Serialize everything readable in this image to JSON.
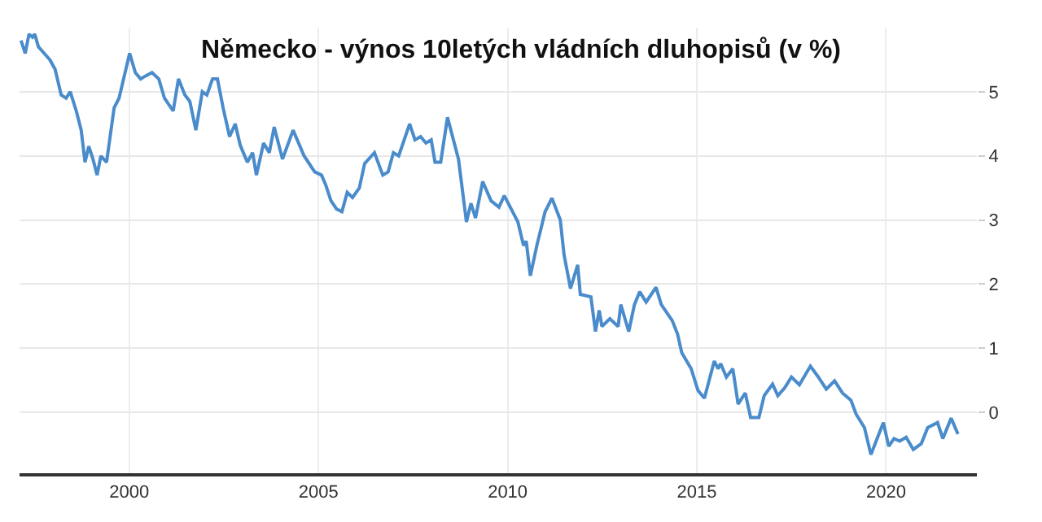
{
  "chart_data": {
    "type": "line",
    "title": "Německo - výnos 10letých vládních dluhopisů (v %)",
    "x": [
      1997.14,
      1997.25,
      1997.35,
      1997.44,
      1997.5,
      1997.6,
      1997.75,
      1997.9,
      1998.04,
      1998.2,
      1998.33,
      1998.44,
      1998.6,
      1998.73,
      1998.83,
      1998.93,
      1999.04,
      1999.15,
      1999.25,
      1999.4,
      1999.6,
      1999.73,
      1999.87,
      2000.01,
      2000.16,
      2000.3,
      2000.44,
      2000.6,
      2000.78,
      2000.93,
      2001.16,
      2001.3,
      2001.47,
      2001.6,
      2001.76,
      2001.93,
      2002.05,
      2002.2,
      2002.33,
      2002.48,
      2002.65,
      2002.8,
      2002.93,
      2003.12,
      2003.26,
      2003.36,
      2003.55,
      2003.7,
      2003.83,
      2004.05,
      2004.33,
      2004.62,
      2004.9,
      2005.08,
      2005.19,
      2005.33,
      2005.48,
      2005.62,
      2005.76,
      2005.9,
      2006.08,
      2006.22,
      2006.48,
      2006.7,
      2006.84,
      2006.98,
      2007.12,
      2007.41,
      2007.55,
      2007.7,
      2007.84,
      2007.98,
      2008.08,
      2008.23,
      2008.41,
      2008.7,
      2008.91,
      2009.03,
      2009.15,
      2009.34,
      2009.56,
      2009.77,
      2009.91,
      2010.13,
      2010.27,
      2010.42,
      2010.49,
      2010.6,
      2010.77,
      2010.99,
      2011.17,
      2011.39,
      2011.49,
      2011.66,
      2011.85,
      2011.92,
      2012.2,
      2012.32,
      2012.42,
      2012.49,
      2012.7,
      2012.92,
      2012.99,
      2013.2,
      2013.35,
      2013.49,
      2013.66,
      2013.92,
      2014.06,
      2014.35,
      2014.49,
      2014.6,
      2014.85,
      2015.03,
      2015.2,
      2015.46,
      2015.56,
      2015.63,
      2015.78,
      2015.95,
      2016.09,
      2016.28,
      2016.42,
      2016.64,
      2016.78,
      2017.0,
      2017.14,
      2017.32,
      2017.5,
      2017.71,
      2018.0,
      2018.21,
      2018.42,
      2018.64,
      2018.85,
      2019.07,
      2019.21,
      2019.43,
      2019.6,
      2019.79,
      2019.93,
      2020.07,
      2020.21,
      2020.36,
      2020.53,
      2020.72,
      2020.93,
      2021.1,
      2021.36,
      2021.5,
      2021.72,
      2021.9
    ],
    "series": [
      {
        "color": "#4a8ccb",
        "values": [
          5.8,
          5.6,
          5.9,
          5.85,
          5.9,
          5.7,
          5.6,
          5.5,
          5.35,
          4.95,
          4.9,
          5.0,
          4.7,
          4.4,
          3.9,
          4.15,
          3.95,
          3.7,
          4.0,
          3.9,
          4.75,
          4.9,
          5.25,
          5.6,
          5.3,
          5.2,
          5.25,
          5.3,
          5.2,
          4.9,
          4.7,
          5.2,
          4.95,
          4.85,
          4.4,
          5.0,
          4.95,
          5.2,
          5.2,
          4.75,
          4.3,
          4.5,
          4.17,
          3.9,
          4.05,
          3.7,
          4.2,
          4.05,
          4.45,
          3.95,
          4.4,
          4.0,
          3.75,
          3.7,
          3.55,
          3.3,
          3.17,
          3.13,
          3.43,
          3.35,
          3.5,
          3.88,
          4.05,
          3.7,
          3.75,
          4.05,
          4.0,
          4.5,
          4.25,
          4.3,
          4.2,
          4.25,
          3.9,
          3.9,
          4.6,
          3.95,
          2.97,
          3.26,
          3.03,
          3.6,
          3.3,
          3.2,
          3.38,
          3.13,
          2.97,
          2.6,
          2.67,
          2.13,
          2.6,
          3.13,
          3.34,
          3.0,
          2.46,
          1.93,
          2.3,
          1.84,
          1.8,
          1.26,
          1.59,
          1.34,
          1.46,
          1.34,
          1.68,
          1.26,
          1.68,
          1.88,
          1.72,
          1.95,
          1.68,
          1.43,
          1.22,
          0.93,
          0.68,
          0.34,
          0.22,
          0.8,
          0.68,
          0.76,
          0.55,
          0.68,
          0.13,
          0.3,
          -0.08,
          -0.08,
          0.26,
          0.44,
          0.26,
          0.38,
          0.55,
          0.43,
          0.72,
          0.55,
          0.36,
          0.49,
          0.3,
          0.19,
          -0.03,
          -0.24,
          -0.66,
          -0.37,
          -0.16,
          -0.53,
          -0.41,
          -0.45,
          -0.39,
          -0.58,
          -0.49,
          -0.24,
          -0.16,
          -0.41,
          -0.09,
          -0.34
        ]
      }
    ],
    "xlim": [
      1997.1,
      2022.4
    ],
    "xticks": [
      2000,
      2005,
      2010,
      2015,
      2020
    ],
    "ylim": [
      -0.95,
      6
    ],
    "yticks": [
      0,
      1,
      2,
      3,
      4,
      5
    ],
    "grid": true,
    "legend": false,
    "marker": "none",
    "line_style": "solid"
  }
}
